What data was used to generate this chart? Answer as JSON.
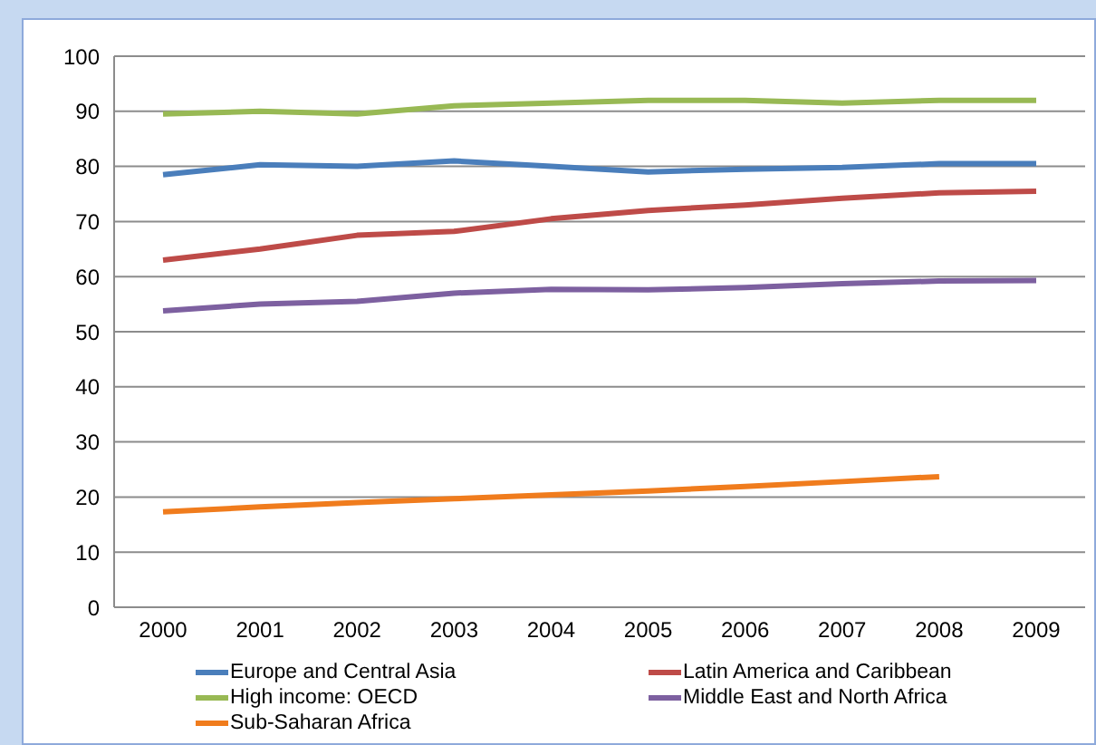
{
  "chart_data": {
    "type": "line",
    "categories": [
      "2000",
      "2001",
      "2002",
      "2003",
      "2004",
      "2005",
      "2006",
      "2007",
      "2008",
      "2009"
    ],
    "series": [
      {
        "name": "Europe and Central Asia",
        "color": "#4a7ebb",
        "values": [
          78.5,
          80.3,
          80,
          81,
          80,
          79,
          79.5,
          79.8,
          80.5,
          80.5
        ]
      },
      {
        "name": "Latin America and Caribbean",
        "color": "#be4b48",
        "values": [
          63,
          65,
          67.5,
          68.2,
          70.5,
          72,
          73,
          74.2,
          75.2,
          75.5
        ]
      },
      {
        "name": "High income: OECD",
        "color": "#98b954",
        "values": [
          89.5,
          90,
          89.5,
          91,
          91.5,
          92,
          92,
          91.5,
          92,
          92
        ]
      },
      {
        "name": "Middle East and North Africa",
        "color": "#7d60a0",
        "values": [
          53.8,
          55,
          55.5,
          57,
          57.7,
          57.6,
          58,
          58.7,
          59.2,
          59.3
        ]
      },
      {
        "name": "Sub-Saharan Africa",
        "color": "#f07c1d",
        "values": [
          17.3,
          18.2,
          19,
          19.7,
          20.4,
          21.1,
          21.9,
          22.8,
          23.7,
          null
        ]
      }
    ],
    "ylim": [
      0,
      100
    ],
    "yticks": [
      0,
      10,
      20,
      30,
      40,
      50,
      60,
      70,
      80,
      90,
      100
    ],
    "grid": "y",
    "legend": "bottom",
    "marker": "none",
    "line_style": "solid"
  }
}
